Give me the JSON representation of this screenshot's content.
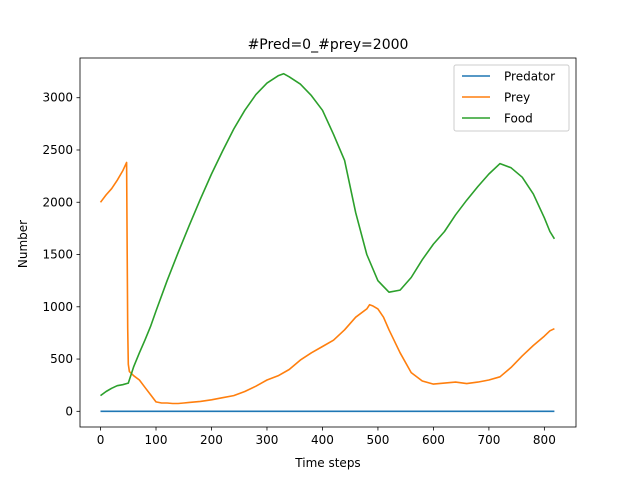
{
  "chart_data": {
    "type": "line",
    "title": "#Pred=0_#prey=2000",
    "xlabel": "Time steps",
    "ylabel": "Number",
    "xlim": [
      -37,
      857
    ],
    "ylim": [
      -150,
      3380
    ],
    "xticks": [
      0,
      100,
      200,
      300,
      400,
      500,
      600,
      700,
      800
    ],
    "yticks": [
      0,
      500,
      1000,
      1500,
      2000,
      2500,
      3000
    ],
    "grid": false,
    "legend_position": "top-right",
    "series": [
      {
        "name": "Predator",
        "color": "#1f77b4",
        "points": [
          [
            0,
            0
          ],
          [
            818,
            0
          ]
        ]
      },
      {
        "name": "Prey",
        "color": "#ff7f0e",
        "points": [
          [
            0,
            2000
          ],
          [
            10,
            2070
          ],
          [
            20,
            2130
          ],
          [
            30,
            2210
          ],
          [
            40,
            2300
          ],
          [
            47,
            2380
          ],
          [
            48,
            1500
          ],
          [
            49,
            800
          ],
          [
            50,
            450
          ],
          [
            52,
            380
          ],
          [
            60,
            340
          ],
          [
            70,
            300
          ],
          [
            80,
            230
          ],
          [
            90,
            160
          ],
          [
            100,
            90
          ],
          [
            110,
            80
          ],
          [
            120,
            80
          ],
          [
            130,
            75
          ],
          [
            140,
            75
          ],
          [
            150,
            80
          ],
          [
            160,
            85
          ],
          [
            180,
            95
          ],
          [
            200,
            110
          ],
          [
            220,
            130
          ],
          [
            240,
            150
          ],
          [
            260,
            190
          ],
          [
            280,
            240
          ],
          [
            300,
            300
          ],
          [
            320,
            340
          ],
          [
            340,
            400
          ],
          [
            360,
            490
          ],
          [
            380,
            560
          ],
          [
            400,
            620
          ],
          [
            420,
            680
          ],
          [
            440,
            780
          ],
          [
            460,
            900
          ],
          [
            480,
            980
          ],
          [
            485,
            1020
          ],
          [
            490,
            1010
          ],
          [
            500,
            980
          ],
          [
            510,
            900
          ],
          [
            520,
            780
          ],
          [
            540,
            560
          ],
          [
            560,
            370
          ],
          [
            580,
            290
          ],
          [
            600,
            260
          ],
          [
            620,
            270
          ],
          [
            640,
            280
          ],
          [
            660,
            265
          ],
          [
            680,
            280
          ],
          [
            700,
            300
          ],
          [
            720,
            330
          ],
          [
            740,
            420
          ],
          [
            760,
            530
          ],
          [
            780,
            630
          ],
          [
            800,
            720
          ],
          [
            810,
            770
          ],
          [
            818,
            790
          ]
        ]
      },
      {
        "name": "Food",
        "color": "#2ca02c",
        "points": [
          [
            0,
            150
          ],
          [
            10,
            190
          ],
          [
            20,
            220
          ],
          [
            30,
            245
          ],
          [
            40,
            255
          ],
          [
            50,
            270
          ],
          [
            60,
            430
          ],
          [
            70,
            560
          ],
          [
            80,
            680
          ],
          [
            90,
            810
          ],
          [
            100,
            960
          ],
          [
            120,
            1250
          ],
          [
            140,
            1520
          ],
          [
            160,
            1780
          ],
          [
            180,
            2030
          ],
          [
            200,
            2270
          ],
          [
            220,
            2490
          ],
          [
            240,
            2700
          ],
          [
            260,
            2880
          ],
          [
            280,
            3030
          ],
          [
            300,
            3140
          ],
          [
            320,
            3210
          ],
          [
            330,
            3230
          ],
          [
            340,
            3200
          ],
          [
            360,
            3130
          ],
          [
            380,
            3020
          ],
          [
            400,
            2880
          ],
          [
            420,
            2650
          ],
          [
            440,
            2400
          ],
          [
            460,
            1900
          ],
          [
            480,
            1500
          ],
          [
            500,
            1250
          ],
          [
            520,
            1140
          ],
          [
            540,
            1160
          ],
          [
            560,
            1280
          ],
          [
            580,
            1450
          ],
          [
            600,
            1600
          ],
          [
            620,
            1720
          ],
          [
            640,
            1880
          ],
          [
            660,
            2020
          ],
          [
            680,
            2150
          ],
          [
            700,
            2270
          ],
          [
            720,
            2370
          ],
          [
            740,
            2330
          ],
          [
            760,
            2240
          ],
          [
            780,
            2080
          ],
          [
            800,
            1850
          ],
          [
            810,
            1720
          ],
          [
            818,
            1650
          ]
        ]
      }
    ]
  }
}
